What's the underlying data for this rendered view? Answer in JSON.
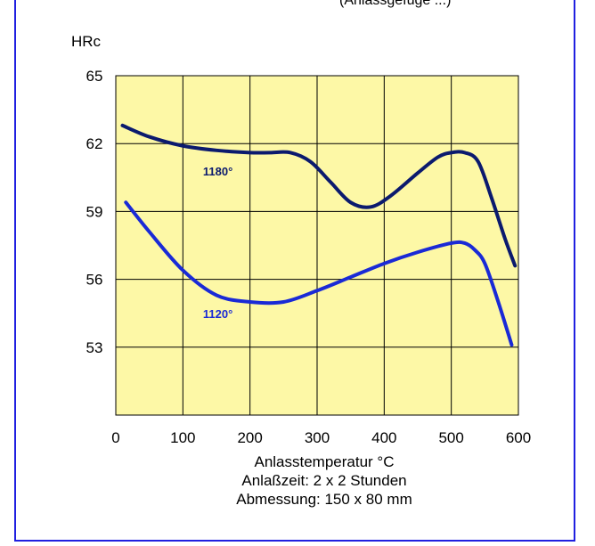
{
  "header": {
    "top_caption": "(Anlassgefüge ...)"
  },
  "chart_data": {
    "type": "line",
    "ylabel": "HRc",
    "xlabel": "Anlasstemperatur °C",
    "notes": [
      "Anlaßzeit: 2 x 2 Stunden",
      "Abmessung: 150 x 80 mm"
    ],
    "xlim": [
      0,
      600
    ],
    "ylim": [
      50,
      65
    ],
    "x_ticks": [
      0,
      100,
      200,
      300,
      400,
      500,
      600
    ],
    "y_ticks": [
      53,
      56,
      59,
      62,
      65
    ],
    "grid": true,
    "plot_background": "#fdf8a6",
    "series": [
      {
        "name": "1180°",
        "color": "#0b1a6e",
        "x": [
          10,
          50,
          100,
          150,
          200,
          230,
          260,
          290,
          320,
          350,
          380,
          410,
          450,
          480,
          500,
          520,
          540,
          560,
          580,
          595
        ],
        "y": [
          62.8,
          62.3,
          61.9,
          61.7,
          61.6,
          61.6,
          61.6,
          61.2,
          60.3,
          59.4,
          59.2,
          59.7,
          60.7,
          61.4,
          61.6,
          61.6,
          61.2,
          59.6,
          57.8,
          56.6
        ]
      },
      {
        "name": "1120°",
        "color": "#1a2ad6",
        "x": [
          15,
          50,
          100,
          150,
          200,
          250,
          300,
          350,
          400,
          450,
          500,
          520,
          535,
          550,
          570,
          590
        ],
        "y": [
          59.4,
          58.1,
          56.4,
          55.3,
          55.0,
          55.0,
          55.5,
          56.1,
          56.7,
          57.2,
          57.6,
          57.6,
          57.3,
          56.7,
          55.0,
          53.1
        ]
      }
    ],
    "series_labels": [
      {
        "text": "1180°",
        "x": 130,
        "y": 60.6
      },
      {
        "text": "1120°",
        "x": 130,
        "y": 54.3
      }
    ]
  }
}
